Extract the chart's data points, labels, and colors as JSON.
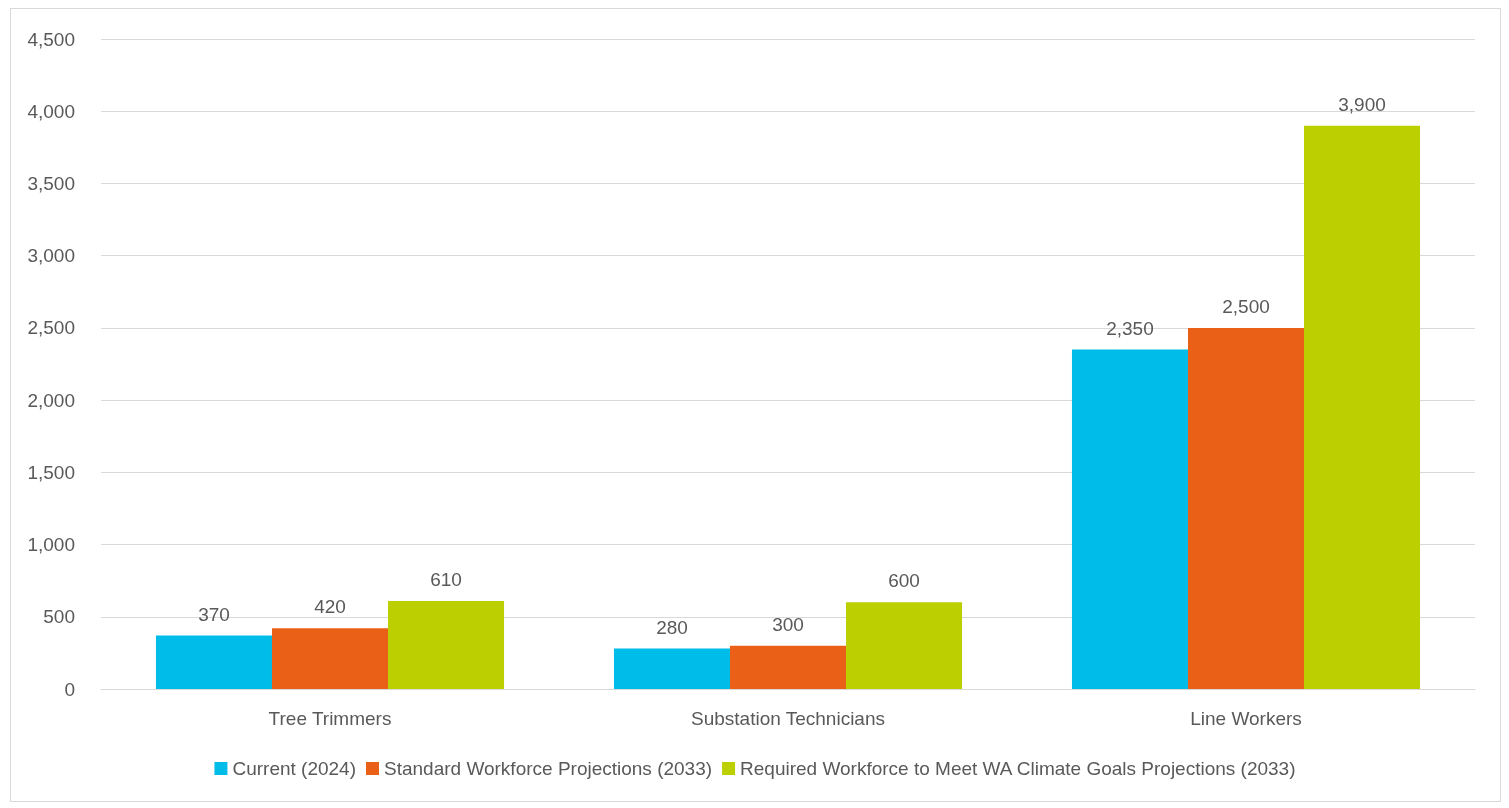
{
  "chart_data": {
    "type": "bar",
    "categories": [
      "Tree Trimmers",
      "Substation Technicians",
      "Line Workers"
    ],
    "series": [
      {
        "name": "Current (2024)",
        "color": "#00bce8",
        "values": [
          370,
          280,
          2350
        ]
      },
      {
        "name": "Standard Workforce Projections (2033)",
        "color": "#ea6017",
        "values": [
          420,
          300,
          2500
        ]
      },
      {
        "name": "Required Workforce to Meet WA Climate Goals Projections (2033)",
        "color": "#bccf00",
        "values": [
          610,
          600,
          3900
        ]
      }
    ],
    "ylim": [
      0,
      4500
    ],
    "yticks": [
      {
        "value": 0,
        "label": "0"
      },
      {
        "value": 500,
        "label": "500"
      },
      {
        "value": 1000,
        "label": "1,000"
      },
      {
        "value": 1500,
        "label": "1,500"
      },
      {
        "value": 2000,
        "label": "2,000"
      },
      {
        "value": 2500,
        "label": "2,500"
      },
      {
        "value": 3000,
        "label": "3,000"
      },
      {
        "value": 3500,
        "label": "3,500"
      },
      {
        "value": 4000,
        "label": "4,000"
      },
      {
        "value": 4500,
        "label": "4,500"
      }
    ],
    "value_labels": [
      [
        "370",
        "280",
        "2,350"
      ],
      [
        "420",
        "300",
        "2,500"
      ],
      [
        "610",
        "600",
        "3,900"
      ]
    ],
    "grid": "y",
    "legend": "bottom"
  }
}
